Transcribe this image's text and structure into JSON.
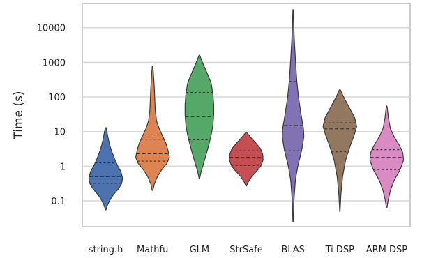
{
  "chart_data": {
    "type": "violin",
    "title": "",
    "xlabel": "",
    "ylabel": "Time (s)",
    "yscale": "log",
    "ylim": [
      0.018,
      50000
    ],
    "yticks": [
      0.1,
      1,
      10,
      100,
      1000,
      10000
    ],
    "ytick_labels": [
      "0.1",
      "1",
      "10",
      "100",
      "1000",
      "10000"
    ],
    "grid": "horizontal",
    "legend": "none",
    "inner": "quartile",
    "categories": [
      "string.h",
      "Mathfu",
      "GLM",
      "StrSafe",
      "BLAS",
      "Ti DSP",
      "ARM DSP"
    ],
    "series": [
      {
        "category": "string.h",
        "color": "#4C72B0",
        "min": 0.055,
        "max": 13,
        "q1": 0.32,
        "median": 0.5,
        "q3": 1.25,
        "density": [
          [
            0.055,
            0.02
          ],
          [
            0.07,
            0.08
          ],
          [
            0.1,
            0.22
          ],
          [
            0.15,
            0.45
          ],
          [
            0.22,
            0.75
          ],
          [
            0.32,
            0.95
          ],
          [
            0.45,
            1.0
          ],
          [
            0.7,
            0.9
          ],
          [
            1.0,
            0.72
          ],
          [
            1.5,
            0.55
          ],
          [
            2.5,
            0.38
          ],
          [
            4.0,
            0.24
          ],
          [
            7.0,
            0.13
          ],
          [
            10,
            0.07
          ],
          [
            13,
            0.02
          ]
        ]
      },
      {
        "category": "Mathfu",
        "color": "#DD8452",
        "min": 0.2,
        "max": 750,
        "q1": 1.4,
        "median": 2.3,
        "q3": 6.0,
        "density": [
          [
            0.2,
            0.02
          ],
          [
            0.3,
            0.1
          ],
          [
            0.5,
            0.28
          ],
          [
            0.8,
            0.55
          ],
          [
            1.2,
            0.85
          ],
          [
            1.8,
            1.0
          ],
          [
            2.8,
            0.92
          ],
          [
            4.5,
            0.8
          ],
          [
            7.0,
            0.62
          ],
          [
            12,
            0.4
          ],
          [
            20,
            0.24
          ],
          [
            40,
            0.16
          ],
          [
            90,
            0.13
          ],
          [
            200,
            0.1
          ],
          [
            400,
            0.06
          ],
          [
            750,
            0.02
          ]
        ]
      },
      {
        "category": "GLM",
        "color": "#55A868",
        "min": 0.45,
        "max": 1600,
        "q1": 5.8,
        "median": 27,
        "q3": 135,
        "density": [
          [
            0.45,
            0.02
          ],
          [
            0.7,
            0.1
          ],
          [
            1.0,
            0.2
          ],
          [
            2.0,
            0.38
          ],
          [
            4.0,
            0.55
          ],
          [
            8.0,
            0.7
          ],
          [
            15,
            0.8
          ],
          [
            30,
            0.85
          ],
          [
            60,
            0.85
          ],
          [
            120,
            0.8
          ],
          [
            250,
            0.7
          ],
          [
            500,
            0.45
          ],
          [
            900,
            0.22
          ],
          [
            1600,
            0.02
          ]
        ]
      },
      {
        "category": "StrSafe",
        "color": "#C44E52",
        "min": 0.27,
        "max": 9.5,
        "q1": 1.05,
        "median": 1.8,
        "q3": 2.8,
        "density": [
          [
            0.27,
            0.02
          ],
          [
            0.35,
            0.12
          ],
          [
            0.5,
            0.32
          ],
          [
            0.7,
            0.6
          ],
          [
            1.0,
            0.86
          ],
          [
            1.5,
            1.0
          ],
          [
            2.2,
            0.98
          ],
          [
            3.2,
            0.85
          ],
          [
            4.5,
            0.6
          ],
          [
            6.5,
            0.3
          ],
          [
            9.5,
            0.02
          ]
        ]
      },
      {
        "category": "BLAS",
        "color": "#8172B3",
        "min": 0.025,
        "max": 33000,
        "q1": 2.8,
        "median": 15,
        "q3": 280,
        "density": [
          [
            0.025,
            0.01
          ],
          [
            0.1,
            0.05
          ],
          [
            0.4,
            0.14
          ],
          [
            1.0,
            0.28
          ],
          [
            3.0,
            0.52
          ],
          [
            7.0,
            0.64
          ],
          [
            12,
            0.62
          ],
          [
            30,
            0.48
          ],
          [
            100,
            0.32
          ],
          [
            300,
            0.22
          ],
          [
            1000,
            0.15
          ],
          [
            5000,
            0.07
          ],
          [
            15000,
            0.03
          ],
          [
            33000,
            0.01
          ]
        ]
      },
      {
        "category": "Ti DSP",
        "color": "#937860",
        "min": 0.05,
        "max": 160,
        "q1": 2.6,
        "median": 12,
        "q3": 18,
        "density": [
          [
            0.05,
            0.01
          ],
          [
            0.15,
            0.06
          ],
          [
            0.5,
            0.16
          ],
          [
            1.5,
            0.34
          ],
          [
            4.0,
            0.62
          ],
          [
            8.0,
            0.85
          ],
          [
            14,
            1.0
          ],
          [
            25,
            0.88
          ],
          [
            50,
            0.55
          ],
          [
            100,
            0.22
          ],
          [
            160,
            0.03
          ]
        ]
      },
      {
        "category": "ARM DSP",
        "color": "#DA8BC3",
        "min": 0.065,
        "max": 55,
        "q1": 0.8,
        "median": 1.8,
        "q3": 3.0,
        "density": [
          [
            0.065,
            0.02
          ],
          [
            0.1,
            0.08
          ],
          [
            0.2,
            0.22
          ],
          [
            0.4,
            0.45
          ],
          [
            0.8,
            0.8
          ],
          [
            1.5,
            1.0
          ],
          [
            2.5,
            0.95
          ],
          [
            4.0,
            0.75
          ],
          [
            7.0,
            0.45
          ],
          [
            12,
            0.22
          ],
          [
            25,
            0.1
          ],
          [
            55,
            0.02
          ]
        ]
      }
    ]
  }
}
